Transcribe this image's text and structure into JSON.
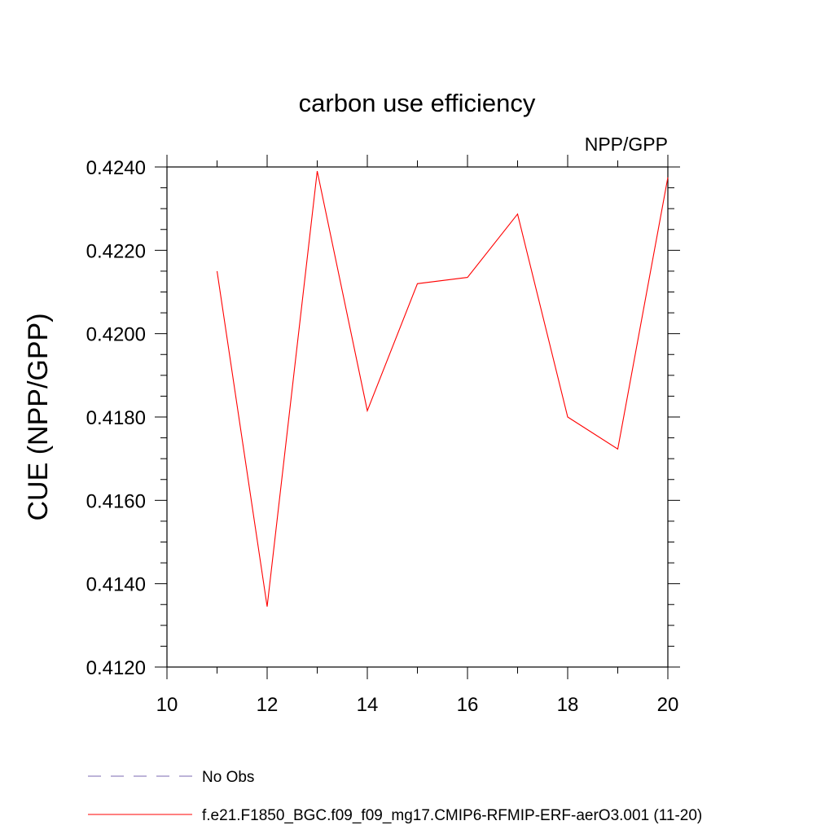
{
  "chart_data": {
    "type": "line",
    "title": "carbon use efficiency",
    "subtitle": "NPP/GPP",
    "xlabel": "",
    "ylabel": "CUE  (NPP/GPP)",
    "xlim": [
      10,
      20
    ],
    "ylim": [
      0.412,
      0.424
    ],
    "xticks": [
      "10",
      "12",
      "14",
      "16",
      "18",
      "20"
    ],
    "yticks": [
      "0.4120",
      "0.4140",
      "0.4160",
      "0.4180",
      "0.4200",
      "0.4220",
      "0.4240"
    ],
    "grid": false,
    "legend_position": "bottom",
    "series": [
      {
        "name": "f.e21.F1850_BGC.f09_f09_mg17.CMIP6-RFMIP-ERF-aerO3.001 (11-20)",
        "color": "#ff0000",
        "style": "solid",
        "x": [
          11,
          12,
          13,
          14,
          15,
          16,
          17,
          18,
          19,
          20
        ],
        "y": [
          0.4215,
          0.41345,
          0.4239,
          0.41815,
          0.4212,
          0.42135,
          0.42287,
          0.418,
          0.41723,
          0.42375
        ]
      }
    ],
    "legend": [
      {
        "label": "No Obs",
        "color": "#7b68b0",
        "style": "dashed"
      },
      {
        "label": "f.e21.F1850_BGC.f09_f09_mg17.CMIP6-RFMIP-ERF-aerO3.001 (11-20)",
        "color": "#ff0000",
        "style": "solid"
      }
    ]
  }
}
